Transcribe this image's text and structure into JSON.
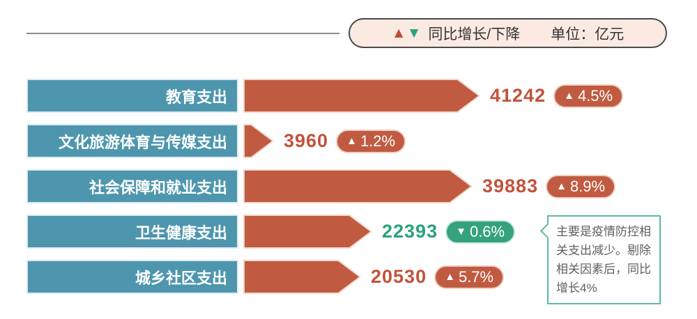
{
  "colors": {
    "bar_red": "#c05b41",
    "bar_outline_pink": "#f2d8cd",
    "category_teal": "#4e96ae",
    "value_red": "#c3523a",
    "value_green": "#2ba17c",
    "pill_green": "#35a17d",
    "legend_bg": "#fbeae2",
    "legend_border": "#4a4a4a",
    "annotation_border": "#5cbc96"
  },
  "legend": {
    "up_symbol": "▲",
    "down_symbol": "▼",
    "label": "同比增长/下降",
    "unit_label": "单位：亿元"
  },
  "rows": [
    {
      "label": "教育支出",
      "value": "41242",
      "symbol": "▲",
      "change": "4.5%",
      "direction": "up"
    },
    {
      "label": "文化旅游体育与传媒支出",
      "value": "3960",
      "symbol": "▲",
      "change": "1.2%",
      "direction": "up"
    },
    {
      "label": "社会保障和就业支出",
      "value": "39883",
      "symbol": "▲",
      "change": "8.9%",
      "direction": "up"
    },
    {
      "label": "卫生健康支出",
      "value": "22393",
      "symbol": "▼",
      "change": "0.6%",
      "direction": "down"
    },
    {
      "label": "城乡社区支出",
      "value": "20530",
      "symbol": "▲",
      "change": "5.7%",
      "direction": "up"
    }
  ],
  "annotation": {
    "text": "主要是疫情防控相关支出减少。剔除相关因素后，同比增长4%"
  },
  "chart_data": {
    "type": "bar",
    "orientation": "horizontal",
    "unit": "亿元",
    "categories": [
      "教育支出",
      "文化旅游体育与传媒支出",
      "社会保障和就业支出",
      "卫生健康支出",
      "城乡社区支出"
    ],
    "values": [
      41242,
      3960,
      39883,
      22393,
      20530
    ],
    "yoy_change_percent": [
      4.5,
      1.2,
      8.9,
      -0.6,
      5.7
    ],
    "legend": "同比增长/下降",
    "annotation_on": "卫生健康支出",
    "annotation": "主要是疫情防控相关支出减少。剔除相关因素后，同比增长4%"
  }
}
